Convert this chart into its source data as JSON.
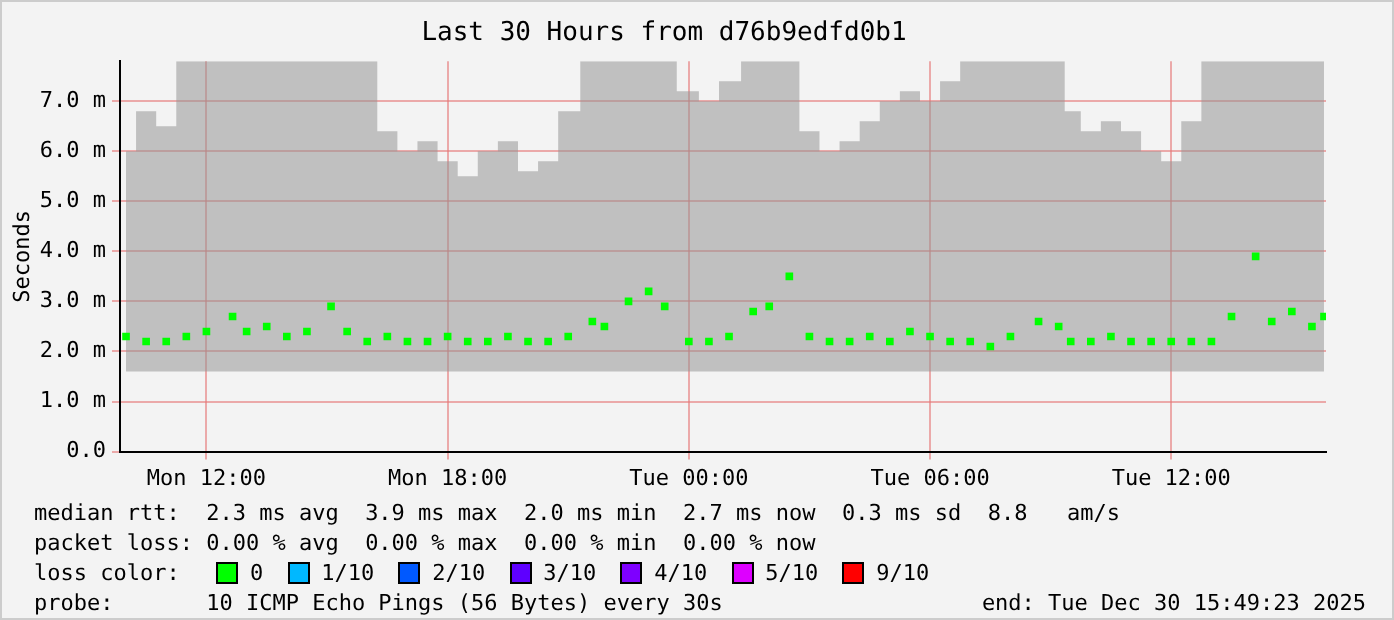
{
  "chart_data": {
    "type": "scatter",
    "title": "Last 30 Hours from d76b9edfd0b1",
    "ylabel": "Seconds",
    "x": [
      "2025-12-29T10:00",
      "2025-12-29T10:30",
      "2025-12-29T11:00",
      "2025-12-29T11:30",
      "2025-12-29T12:00",
      "2025-12-29T12:39",
      "2025-12-29T13:00",
      "2025-12-29T13:30",
      "2025-12-29T14:00",
      "2025-12-29T14:30",
      "2025-12-29T15:06",
      "2025-12-29T15:30",
      "2025-12-29T16:00",
      "2025-12-29T16:30",
      "2025-12-29T17:00",
      "2025-12-29T17:30",
      "2025-12-29T18:00",
      "2025-12-29T18:30",
      "2025-12-29T19:00",
      "2025-12-29T19:30",
      "2025-12-29T20:00",
      "2025-12-29T20:30",
      "2025-12-29T21:00",
      "2025-12-29T21:36",
      "2025-12-29T21:54",
      "2025-12-29T22:30",
      "2025-12-29T23:00",
      "2025-12-29T23:24",
      "2025-12-30T00:00",
      "2025-12-30T00:30",
      "2025-12-30T01:00",
      "2025-12-30T01:36",
      "2025-12-30T02:00",
      "2025-12-30T02:30",
      "2025-12-30T03:00",
      "2025-12-30T03:30",
      "2025-12-30T04:00",
      "2025-12-30T04:30",
      "2025-12-30T05:00",
      "2025-12-30T05:30",
      "2025-12-30T06:00",
      "2025-12-30T06:30",
      "2025-12-30T07:00",
      "2025-12-30T07:30",
      "2025-12-30T08:00",
      "2025-12-30T08:42",
      "2025-12-30T09:12",
      "2025-12-30T09:30",
      "2025-12-30T10:00",
      "2025-12-30T10:30",
      "2025-12-30T11:00",
      "2025-12-30T11:30",
      "2025-12-30T12:00",
      "2025-12-30T12:30",
      "2025-12-30T13:00",
      "2025-12-30T13:30",
      "2025-12-30T14:06",
      "2025-12-30T14:30",
      "2025-12-30T15:00",
      "2025-12-30T15:30",
      "2025-12-30T15:48"
    ],
    "xlim": [
      "2025-12-29T09:51",
      "2025-12-30T15:51"
    ],
    "xticks": [
      {
        "value": "2025-12-29T12:00",
        "label": "Mon 12:00"
      },
      {
        "value": "2025-12-29T18:00",
        "label": "Mon 18:00"
      },
      {
        "value": "2025-12-30T00:00",
        "label": "Tue 00:00"
      },
      {
        "value": "2025-12-30T06:00",
        "label": "Tue 06:00"
      },
      {
        "value": "2025-12-30T12:00",
        "label": "Tue 12:00"
      }
    ],
    "ylim": [
      0,
      7.8
    ],
    "yticks": [
      {
        "value": 0,
        "label": "0.0"
      },
      {
        "value": 1,
        "label": "1.0 m"
      },
      {
        "value": 2,
        "label": "2.0 m"
      },
      {
        "value": 3,
        "label": "3.0 m"
      },
      {
        "value": 4,
        "label": "4.0 m"
      },
      {
        "value": 5,
        "label": "5.0 m"
      },
      {
        "value": 6,
        "label": "6.0 m"
      },
      {
        "value": 7,
        "label": "7.0 m"
      }
    ],
    "series": [
      {
        "name": "0",
        "color": "#00ff00",
        "values": [
          2.3,
          2.2,
          2.2,
          2.3,
          2.4,
          2.7,
          2.4,
          2.5,
          2.3,
          2.4,
          2.9,
          2.4,
          2.2,
          2.3,
          2.2,
          2.2,
          2.3,
          2.2,
          2.2,
          2.3,
          2.2,
          2.2,
          2.3,
          2.6,
          2.5,
          3.0,
          3.2,
          2.9,
          2.2,
          2.2,
          2.3,
          2.8,
          2.9,
          3.5,
          2.3,
          2.2,
          2.2,
          2.3,
          2.2,
          2.4,
          2.3,
          2.2,
          2.2,
          2.1,
          2.3,
          2.6,
          2.5,
          2.2,
          2.2,
          2.3,
          2.2,
          2.2,
          2.2,
          2.2,
          2.2,
          2.7,
          3.9,
          2.6,
          2.8,
          2.5,
          2.7
        ],
        "lower": [
          1.6,
          1.6,
          1.6,
          1.6,
          1.6,
          1.6,
          1.6,
          1.6,
          1.6,
          1.6,
          1.6,
          1.6,
          1.6,
          1.6,
          1.6,
          1.6,
          1.6,
          1.6,
          1.6,
          1.6,
          1.6,
          1.6,
          1.6,
          1.6,
          1.6,
          1.6,
          1.6,
          1.6,
          1.6,
          1.6,
          1.6,
          1.6,
          1.6,
          1.6,
          1.6,
          1.6,
          1.6,
          1.6,
          1.6,
          1.6,
          1.6,
          1.6,
          1.6,
          1.6,
          1.6,
          1.6,
          1.6,
          1.6,
          1.6,
          1.6,
          1.6,
          1.6,
          1.6,
          1.6,
          1.6,
          1.6,
          1.6,
          1.6,
          1.6,
          1.6,
          1.6
        ],
        "upper": [
          6.0,
          6.8,
          6.5,
          7.8,
          7.8,
          7.8,
          7.8,
          7.8,
          7.8,
          7.8,
          7.8,
          7.8,
          7.8,
          6.4,
          6.0,
          6.2,
          5.8,
          5.5,
          6.0,
          6.2,
          5.6,
          5.8,
          6.8,
          7.8,
          7.8,
          7.8,
          7.8,
          7.8,
          7.2,
          7.0,
          7.4,
          7.8,
          7.8,
          7.8,
          6.4,
          6.0,
          6.2,
          6.6,
          7.0,
          7.2,
          7.0,
          7.4,
          7.8,
          7.8,
          7.8,
          7.8,
          7.8,
          6.8,
          6.4,
          6.6,
          6.4,
          6.0,
          5.8,
          6.6,
          7.8,
          7.8,
          7.8,
          7.8,
          7.8,
          7.8,
          7.8
        ]
      },
      {
        "name": "1/10",
        "color": "#00b8ff",
        "values": [
          null,
          null,
          null,
          null,
          null,
          null,
          null,
          null,
          null,
          null,
          null,
          null,
          null,
          null,
          null,
          null,
          null,
          null,
          null,
          null,
          null,
          null,
          null,
          null,
          null,
          null,
          null,
          null,
          null,
          null,
          null,
          null,
          null,
          null,
          null,
          null,
          null,
          null,
          null,
          null,
          null,
          null,
          null,
          null,
          null,
          null,
          null,
          null,
          null,
          null,
          null,
          null,
          null,
          null,
          null,
          null,
          null,
          null,
          null,
          null,
          null
        ]
      },
      {
        "name": "2/10",
        "color": "#0059ff",
        "values": [
          null,
          null,
          null,
          null,
          null,
          null,
          null,
          null,
          null,
          null,
          null,
          null,
          null,
          null,
          null,
          null,
          null,
          null,
          null,
          null,
          null,
          null,
          null,
          null,
          null,
          null,
          null,
          null,
          null,
          null,
          null,
          null,
          null,
          null,
          null,
          null,
          null,
          null,
          null,
          null,
          null,
          null,
          null,
          null,
          null,
          null,
          null,
          null,
          null,
          null,
          null,
          null,
          null,
          null,
          null,
          null,
          null,
          null,
          null,
          null,
          null
        ]
      },
      {
        "name": "3/10",
        "color": "#5e00ff",
        "values": [
          null,
          null,
          null,
          null,
          null,
          null,
          null,
          null,
          null,
          null,
          null,
          null,
          null,
          null,
          null,
          null,
          null,
          null,
          null,
          null,
          null,
          null,
          null,
          null,
          null,
          null,
          null,
          null,
          null,
          null,
          null,
          null,
          null,
          null,
          null,
          null,
          null,
          null,
          null,
          null,
          null,
          null,
          null,
          null,
          null,
          null,
          null,
          null,
          null,
          null,
          null,
          null,
          null,
          null,
          null,
          null,
          null,
          null,
          null,
          null,
          null
        ]
      },
      {
        "name": "4/10",
        "color": "#7e00ff",
        "values": [
          null,
          null,
          null,
          null,
          null,
          null,
          null,
          null,
          null,
          null,
          null,
          null,
          null,
          null,
          null,
          null,
          null,
          null,
          null,
          null,
          null,
          null,
          null,
          null,
          null,
          null,
          null,
          null,
          null,
          null,
          null,
          null,
          null,
          null,
          null,
          null,
          null,
          null,
          null,
          null,
          null,
          null,
          null,
          null,
          null,
          null,
          null,
          null,
          null,
          null,
          null,
          null,
          null,
          null,
          null,
          null,
          null,
          null,
          null,
          null,
          null
        ]
      },
      {
        "name": "5/10",
        "color": "#dd00ff",
        "values": [
          null,
          null,
          null,
          null,
          null,
          null,
          null,
          null,
          null,
          null,
          null,
          null,
          null,
          null,
          null,
          null,
          null,
          null,
          null,
          null,
          null,
          null,
          null,
          null,
          null,
          null,
          null,
          null,
          null,
          null,
          null,
          null,
          null,
          null,
          null,
          null,
          null,
          null,
          null,
          null,
          null,
          null,
          null,
          null,
          null,
          null,
          null,
          null,
          null,
          null,
          null,
          null,
          null,
          null,
          null,
          null,
          null,
          null,
          null,
          null,
          null
        ]
      },
      {
        "name": "9/10",
        "color": "#ff0000",
        "values": [
          null,
          null,
          null,
          null,
          null,
          null,
          null,
          null,
          null,
          null,
          null,
          null,
          null,
          null,
          null,
          null,
          null,
          null,
          null,
          null,
          null,
          null,
          null,
          null,
          null,
          null,
          null,
          null,
          null,
          null,
          null,
          null,
          null,
          null,
          null,
          null,
          null,
          null,
          null,
          null,
          null,
          null,
          null,
          null,
          null,
          null,
          null,
          null,
          null,
          null,
          null,
          null,
          null,
          null,
          null,
          null,
          null,
          null,
          null,
          null,
          null
        ]
      }
    ],
    "legend": "bottom",
    "legend_title": "loss color:",
    "marker": "square",
    "grid": true,
    "annotations": [
      "median rtt:  2.3 ms avg  3.9 ms max  2.0 ms min  2.7 ms now  0.3 ms sd  8.8   am/s",
      "packet loss: 0.00 % avg  0.00 % max  0.00 % min  0.00 % now",
      "probe:       10 ICMP Echo Pings (56 Bytes) every 30s",
      "end: Tue Dec 30 15:49:23 2025"
    ]
  }
}
